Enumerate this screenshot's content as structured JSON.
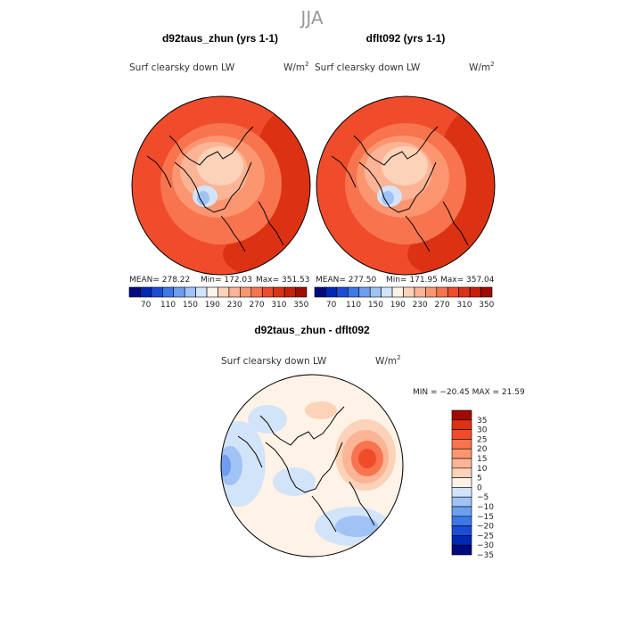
{
  "figure": {
    "title": "JJA"
  },
  "colors": {
    "abs_scale": [
      "#000a80",
      "#0028b4",
      "#1a4cd6",
      "#3c78e8",
      "#6e9ef0",
      "#a0c2f5",
      "#d2e4fa",
      "#fff2e6",
      "#fcd2b8",
      "#fcb496",
      "#fc9670",
      "#f8744e",
      "#f04c2c",
      "#dc3214",
      "#c81e0a",
      "#a00a00"
    ],
    "diff_scale": [
      "#000a80",
      "#0028b4",
      "#1a4cd6",
      "#3c78e8",
      "#6e9ef0",
      "#a0c2f5",
      "#d2e4fa",
      "#fff2e6",
      "#fcd2b8",
      "#fcb496",
      "#fc9670",
      "#f8744e",
      "#f04c2c",
      "#dc3214",
      "#a00a00"
    ]
  },
  "chart_data": [
    {
      "type": "heatmap",
      "projection": "polar-north",
      "panel_title": "d92taus_zhun (yrs 1-1)",
      "variable": "Surf clearsky down LW",
      "units": "W/m",
      "units_power": "2",
      "stats": {
        "mean": "MEAN= 278.22",
        "min": "Min= 172.03",
        "max": "Max= 351.53"
      },
      "colorbar": {
        "orientation": "horizontal",
        "tick_labels": [
          "70",
          "110",
          "150",
          "190",
          "230",
          "270",
          "310",
          "350"
        ]
      }
    },
    {
      "type": "heatmap",
      "projection": "polar-north",
      "panel_title": "dflt092 (yrs 1-1)",
      "variable": "Surf clearsky down LW",
      "units": "W/m",
      "units_power": "2",
      "stats": {
        "mean": "MEAN= 277.50",
        "min": "Min= 171.95",
        "max": "Max= 357.04"
      },
      "colorbar": {
        "orientation": "horizontal",
        "tick_labels": [
          "70",
          "110",
          "150",
          "190",
          "230",
          "270",
          "310",
          "350"
        ]
      }
    },
    {
      "type": "heatmap",
      "projection": "polar-north",
      "panel_title": "d92taus_zhun - dflt092",
      "variable": "Surf clearsky down LW",
      "units": "W/m",
      "units_power": "2",
      "stats": {
        "minmax": "MIN = −20.45 MAX =  21.59"
      },
      "colorbar": {
        "orientation": "vertical",
        "tick_labels": [
          "35",
          "30",
          "25",
          "20",
          "15",
          "10",
          "5",
          "0",
          "−5",
          "−10",
          "−15",
          "−20",
          "−25",
          "−30",
          "−35"
        ]
      }
    }
  ]
}
